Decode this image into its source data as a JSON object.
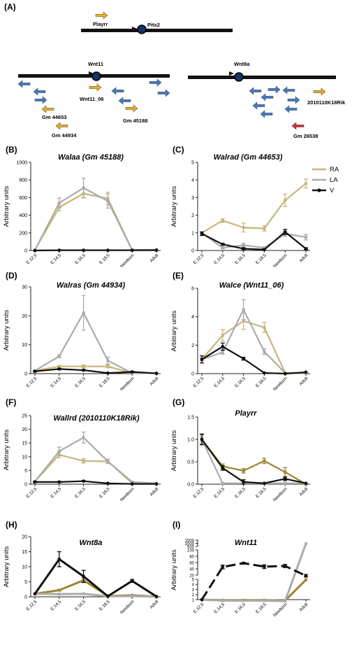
{
  "panel_a": {
    "letter": "(A)",
    "labels": {
      "playrr": "Playrr",
      "pitx2": "Pitx2",
      "wnt11": "Wnt11",
      "wnt8a": "Wnt8a",
      "wnt11_06": "Wnt11_06",
      "gm44653": "Gm 44653",
      "gm44934": "Gm 44934",
      "gm45188": "Gm 45188",
      "rik": "2010110K18Rik",
      "gm26538": "Gm 26538"
    },
    "colors": {
      "sense": "#f0ad1e",
      "antisense": "#3f78c6",
      "red": "#d42a3a"
    }
  },
  "legend": [
    "RA",
    "LA",
    "V"
  ],
  "colors": {
    "RA": "#c9b57a",
    "LA": "#ababab",
    "V": "#111111",
    "RA_dark": "#9b8531"
  },
  "chart_data": [
    {
      "id": "B",
      "letter": "(B)",
      "type": "line",
      "title": "Walaa (Gm 45188)",
      "ylabel": "Arbitrary units",
      "ylim": [
        0,
        1000
      ],
      "yticks": [
        "0",
        "200",
        "400",
        "600",
        "800",
        "1000"
      ],
      "categories": [
        "E.12,5",
        "E.14,5",
        "E.16,5",
        "E.18,5",
        "Newborn",
        "Adult"
      ],
      "series": [
        {
          "name": "RA",
          "values": [
            5,
            490,
            645,
            590,
            5,
            5
          ],
          "err": [
            0,
            40,
            50,
            70,
            0,
            0
          ]
        },
        {
          "name": "LA",
          "values": [
            5,
            540,
            710,
            560,
            5,
            10
          ],
          "err": [
            0,
            55,
            110,
            80,
            0,
            0
          ]
        },
        {
          "name": "V",
          "values": [
            0,
            3,
            3,
            3,
            3,
            3
          ],
          "err": [
            0,
            0,
            0,
            0,
            0,
            0
          ]
        }
      ]
    },
    {
      "id": "C",
      "letter": "(C)",
      "type": "line",
      "title": "Walrad (Gm 44653)",
      "ylabel": "Arbitrary units",
      "ylim": [
        0,
        5
      ],
      "yticks": [
        "0",
        "1",
        "2",
        "3",
        "4",
        "5"
      ],
      "categories": [
        "E.12,5",
        "E.14,5",
        "E.16,5",
        "E.18,5",
        "Newborn",
        "Adult"
      ],
      "series": [
        {
          "name": "RA",
          "values": [
            1.0,
            1.7,
            1.3,
            1.25,
            2.85,
            3.8
          ],
          "err": [
            0,
            0.1,
            0.25,
            0.15,
            0.35,
            0.25
          ]
        },
        {
          "name": "LA",
          "values": [
            1.0,
            0.15,
            0.3,
            0.15,
            0.95,
            0.75
          ],
          "err": [
            0,
            0.05,
            0.1,
            0.05,
            0.15,
            0.15
          ]
        },
        {
          "name": "V",
          "values": [
            0.95,
            0.35,
            0.1,
            0.05,
            1.05,
            0.1
          ],
          "err": [
            0.1,
            0.05,
            0.05,
            0.05,
            0.15,
            0.05
          ]
        }
      ]
    },
    {
      "id": "D",
      "letter": "(D)",
      "type": "line",
      "title": "Walras (Gm 44934)",
      "ylabel": "Arbitrary units",
      "ylim": [
        0,
        30
      ],
      "yticks": [
        "0",
        "10",
        "20",
        "30"
      ],
      "categories": [
        "E.12,5",
        "E.14,5",
        "E.16,5",
        "E.18,5",
        "Newborn",
        "Adult"
      ],
      "series": [
        {
          "name": "RA",
          "values": [
            1.0,
            2.5,
            2.5,
            2.5,
            0.2,
            0.1
          ],
          "err": [
            0,
            0.3,
            0.5,
            0.5,
            0,
            0
          ]
        },
        {
          "name": "LA",
          "values": [
            1.0,
            6.0,
            21.0,
            4.5,
            0.2,
            0.1
          ],
          "err": [
            0,
            0.5,
            6.0,
            1.2,
            0,
            0
          ]
        },
        {
          "name": "V",
          "values": [
            0.8,
            1.6,
            1.2,
            0.2,
            0.6,
            0.1
          ],
          "err": [
            0.2,
            0.2,
            0.2,
            0.1,
            0.2,
            0
          ]
        }
      ]
    },
    {
      "id": "E",
      "letter": "(E)",
      "type": "line",
      "title": "Walce (Wnt11_06)",
      "ylabel": "Arbitrary units",
      "ylim": [
        0,
        6
      ],
      "yticks": [
        "0",
        "2",
        "4",
        "6"
      ],
      "categories": [
        "E.12,5",
        "E.14,5",
        "E.16,5",
        "E.18,5",
        "Newborn",
        "Adult"
      ],
      "series": [
        {
          "name": "RA",
          "values": [
            1.0,
            2.7,
            3.7,
            3.25,
            0.05,
            0.0
          ],
          "err": [
            0.1,
            0.4,
            0.6,
            0.35,
            0,
            0
          ]
        },
        {
          "name": "LA",
          "values": [
            1.0,
            1.5,
            4.5,
            1.55,
            0.05,
            0.05
          ],
          "err": [
            0.1,
            0.15,
            0.7,
            0.2,
            0,
            0
          ]
        },
        {
          "name": "V",
          "values": [
            1.0,
            1.9,
            1.05,
            0.05,
            0.0,
            0.1
          ],
          "err": [
            0.25,
            0.25,
            0.1,
            0,
            0,
            0
          ]
        }
      ]
    },
    {
      "id": "F",
      "letter": "(F)",
      "type": "line",
      "title": "Wallrd (2010110K18Rik)",
      "ylabel": "Arbitrary units",
      "ylim": [
        0,
        25
      ],
      "yticks": [
        "0",
        "5",
        "10",
        "15",
        "20",
        "25"
      ],
      "categories": [
        "E.12,5",
        "E.14,5",
        "E.16,5",
        "E.18,5",
        "Newborn",
        "Adult"
      ],
      "series": [
        {
          "name": "RA",
          "values": [
            1.0,
            10.7,
            8.5,
            8.3,
            0.3,
            0.2
          ],
          "err": [
            0,
            1.0,
            0.8,
            0.7,
            0,
            0
          ]
        },
        {
          "name": "LA",
          "values": [
            1.0,
            12.0,
            17.0,
            8.3,
            0.8,
            0.3
          ],
          "err": [
            0,
            1.5,
            2.0,
            0.8,
            0.1,
            0
          ]
        },
        {
          "name": "V",
          "values": [
            0.8,
            0.8,
            1.1,
            0.3,
            0.1,
            0.1
          ],
          "err": [
            0.2,
            0.2,
            0.2,
            0.1,
            0,
            0
          ]
        }
      ]
    },
    {
      "id": "G",
      "letter": "(G)",
      "type": "line",
      "title": "Playrr",
      "ylabel": "Arbitrary units",
      "ylim": [
        0,
        1.5
      ],
      "yticks": [
        "0.0",
        "0.5",
        "1.0",
        "1.5"
      ],
      "categories": [
        "E.12,5",
        "E.14,5",
        "E.16,5",
        "E.18,5",
        "Newborn",
        "Adult"
      ],
      "series": [
        {
          "name": "RA",
          "values": [
            1.0,
            0.4,
            0.3,
            0.52,
            0.27,
            0.0
          ],
          "err": [
            0.1,
            0.05,
            0.05,
            0.06,
            0.1,
            0
          ]
        },
        {
          "name": "LA",
          "values": [
            1.0,
            0.02,
            0.02,
            0.02,
            0.02,
            0.02
          ],
          "err": [
            0.05,
            0,
            0,
            0,
            0,
            0
          ]
        },
        {
          "name": "V",
          "values": [
            1.0,
            0.36,
            0.05,
            0.02,
            0.12,
            0.02
          ],
          "err": [
            0.12,
            0.05,
            0.05,
            0,
            0.04,
            0
          ]
        }
      ]
    },
    {
      "id": "H",
      "letter": "(H)",
      "type": "line",
      "title": "Wnt8a",
      "ylabel": "Arbitrary units",
      "ylim": [
        0,
        20
      ],
      "yticks": [
        "0",
        "5",
        "10",
        "15",
        "20"
      ],
      "categories": [
        "E.12,5",
        "E.14,5",
        "E.16,5",
        "E.18,5",
        "Newborn",
        "Adult"
      ],
      "series": [
        {
          "name": "RA",
          "values": [
            1.0,
            2.2,
            5.5,
            0.3,
            0.5,
            0.1
          ],
          "err": [
            0,
            0.3,
            0.8,
            0,
            0,
            0
          ]
        },
        {
          "name": "LA",
          "values": [
            1.0,
            0.9,
            1.0,
            0.2,
            0.2,
            0.1
          ],
          "err": [
            0,
            0.1,
            0.2,
            0,
            0,
            0
          ]
        },
        {
          "name": "V",
          "values": [
            1.0,
            12.5,
            6.8,
            0.2,
            5.3,
            0.1
          ],
          "err": [
            0,
            2.5,
            2.0,
            0,
            0.5,
            0
          ]
        }
      ]
    },
    {
      "id": "I",
      "letter": "(I)",
      "type": "line",
      "title": "Wnt11",
      "ylabel": "Arbitrary units",
      "yscale": "broken",
      "yticks": [
        "1",
        "2",
        "3",
        "4",
        "5",
        "20",
        "40",
        "60",
        "80",
        "100",
        "500",
        "1000",
        "1500"
      ],
      "categories": [
        "E.12,5",
        "E.14,5",
        "E.16,5",
        "E.18,5",
        "Newborn",
        "Adult"
      ],
      "series": [
        {
          "name": "RA",
          "values": [
            1.0,
            0.9,
            0.9,
            0.9,
            0.8,
            5.2
          ],
          "err": [
            0,
            0,
            0,
            0,
            0,
            0
          ]
        },
        {
          "name": "LA",
          "values": [
            1.0,
            0.8,
            0.8,
            0.8,
            0.7,
            950
          ],
          "err": [
            0,
            0,
            0,
            0,
            0,
            0
          ]
        },
        {
          "name": "V",
          "values": [
            1.0,
            46,
            58,
            47,
            49,
            18
          ],
          "err": [
            0,
            6,
            2,
            6,
            5,
            4
          ]
        }
      ]
    }
  ]
}
